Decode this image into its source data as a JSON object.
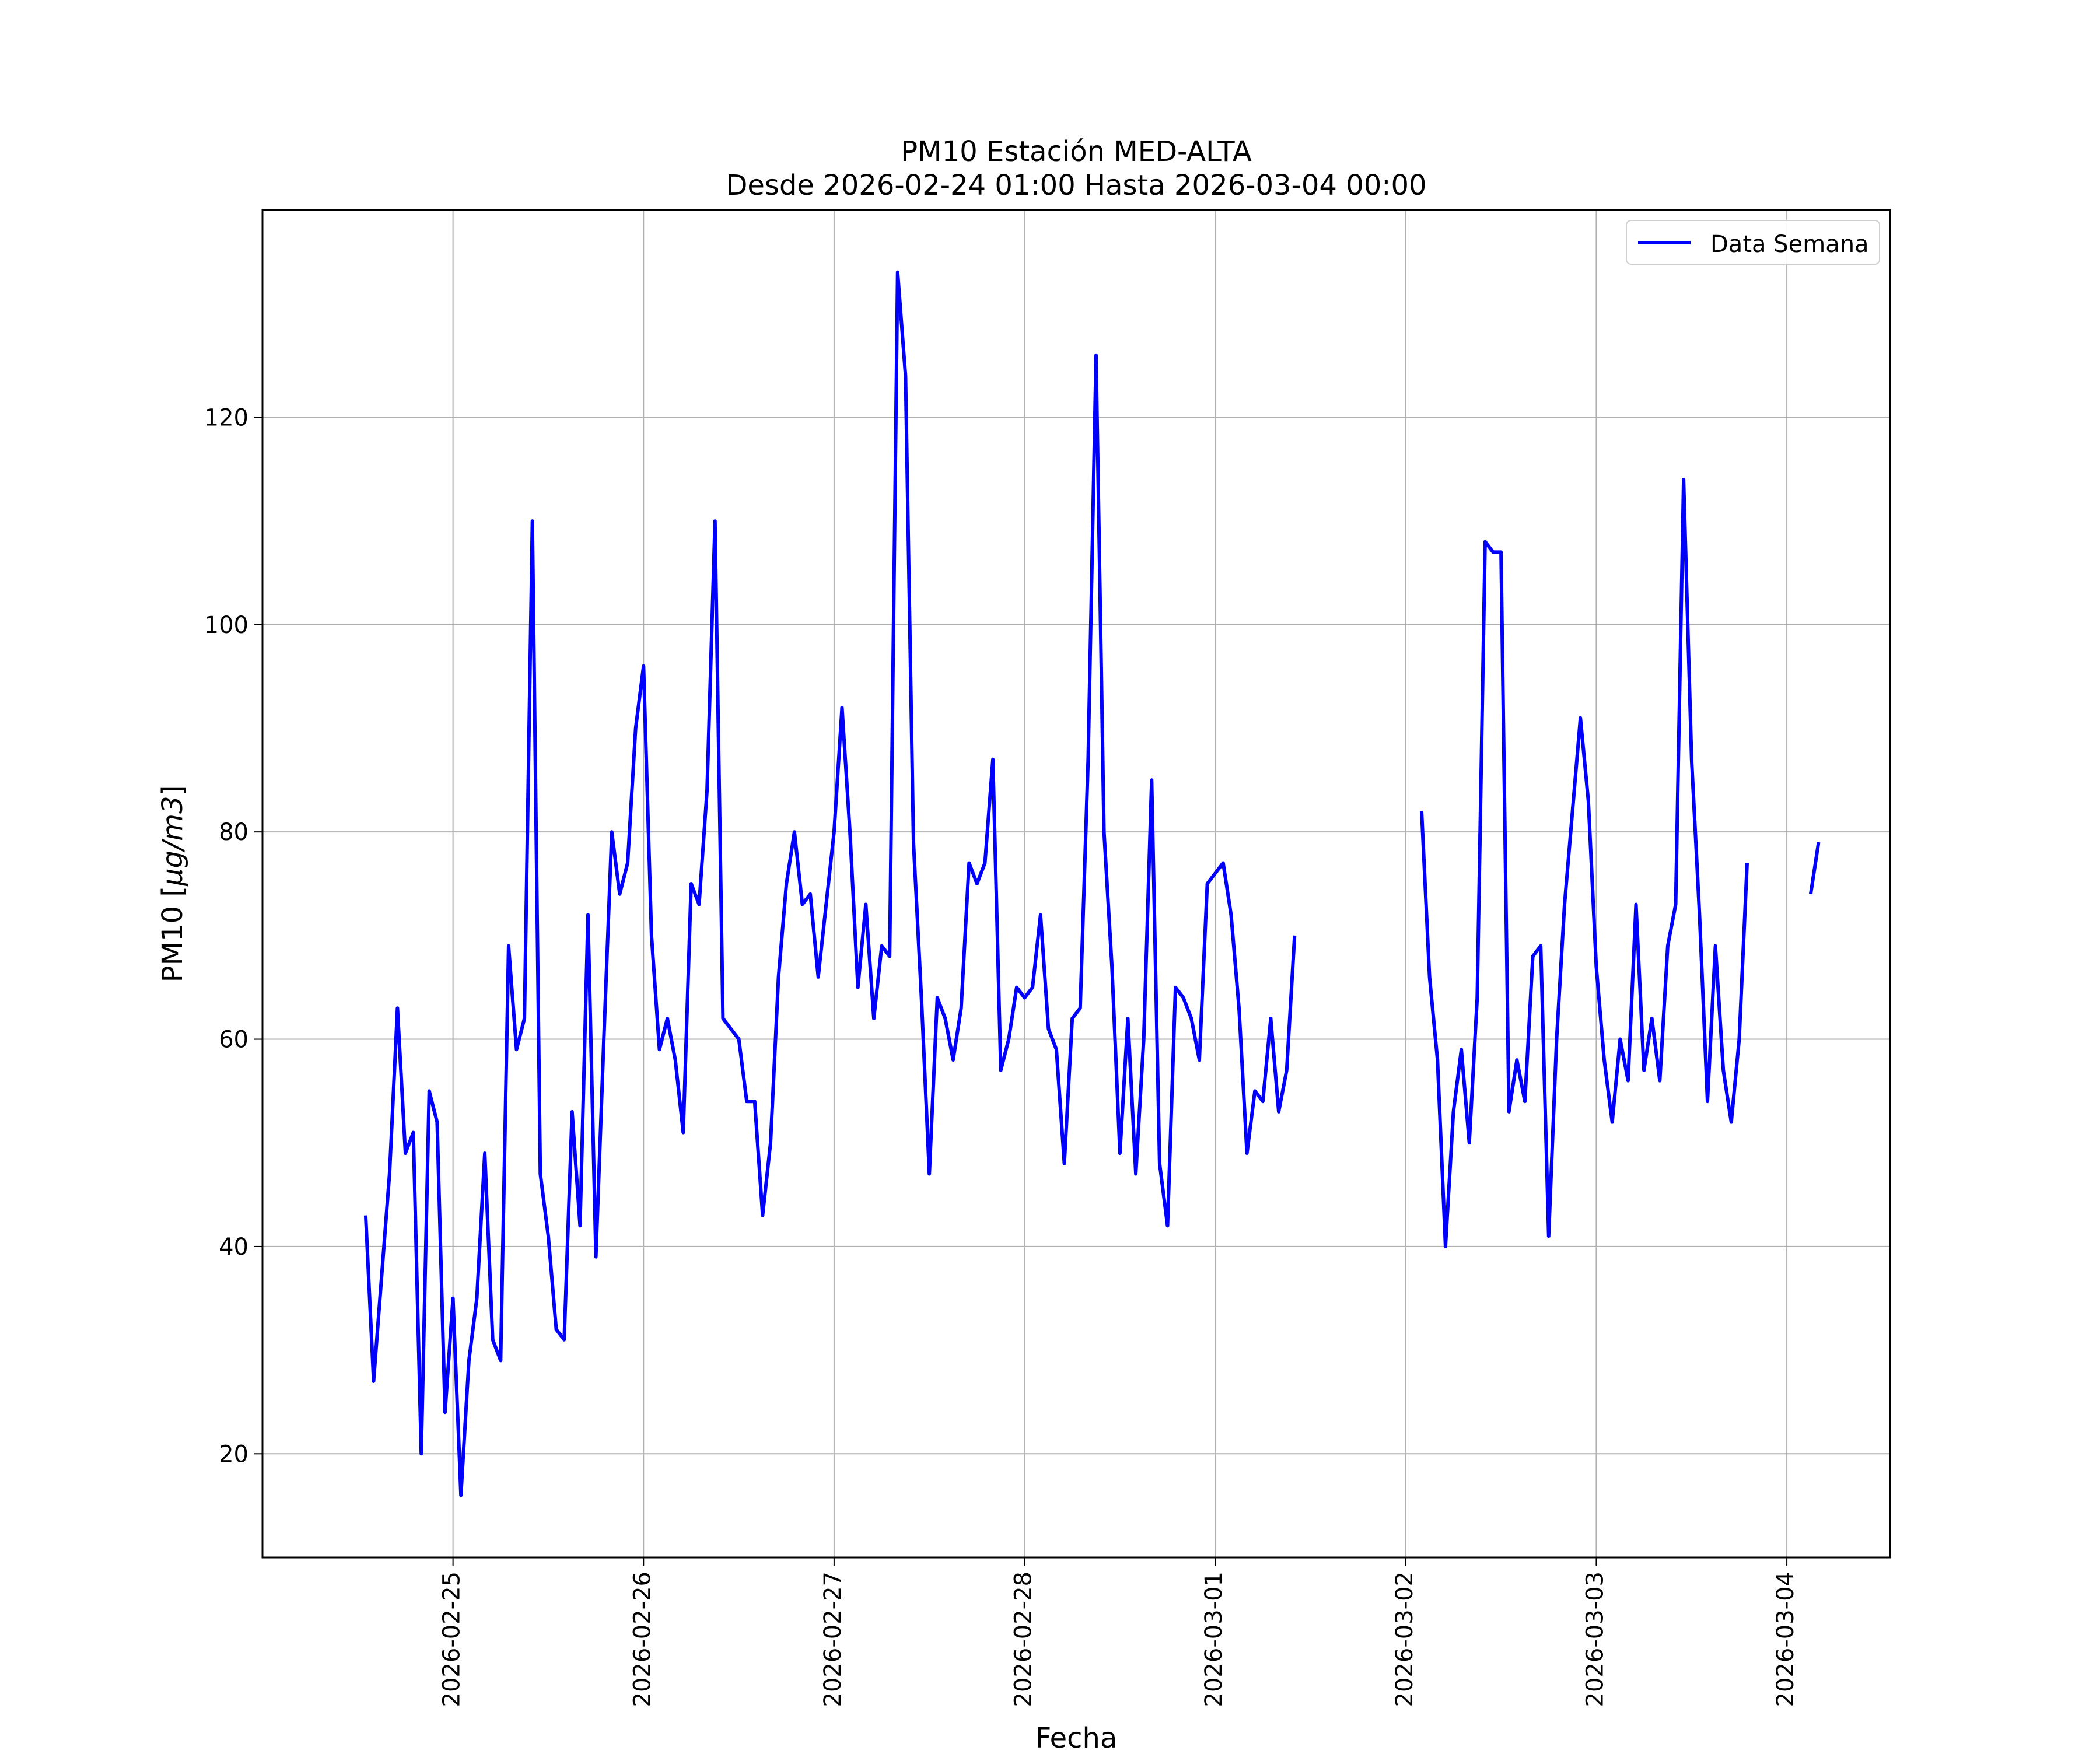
{
  "chart_data": {
    "type": "line",
    "title": "PM10 Estación MED-ALTA",
    "subtitle": "Desde 2026-02-24 01:00 Hasta 2026-03-04 00:00",
    "xlabel": "Fecha",
    "ylabel_text": "PM10 [",
    "ylabel_math": "μg/m3",
    "ylabel_close": "]",
    "x_start": "2026-02-24 01:00",
    "x_step_hours": 1,
    "xlim": [
      "2026-02-24 00:00",
      "2026-03-04 13:00"
    ],
    "ylim": [
      10,
      140
    ],
    "yticks": [
      20,
      40,
      60,
      80,
      100,
      120
    ],
    "xticks": [
      "2026-02-25",
      "2026-02-26",
      "2026-02-27",
      "2026-02-28",
      "2026-03-01",
      "2026-03-02",
      "2026-03-03",
      "2026-03-04"
    ],
    "grid": true,
    "legend_position": "top-right",
    "series": [
      {
        "name": "Data Semana",
        "color": "#0000ff",
        "values": [
          null,
          null,
          null,
          null,
          null,
          null,
          null,
          null,
          null,
          null,
          null,
          null,
          43,
          27,
          37,
          47,
          63,
          49,
          51,
          20,
          55,
          52,
          24,
          35,
          16,
          29,
          35,
          49,
          31,
          29,
          69,
          59,
          62,
          110,
          47,
          41,
          32,
          31,
          53,
          42,
          72,
          39,
          60,
          80,
          74,
          77,
          90,
          96,
          70,
          59,
          62,
          58,
          51,
          75,
          73,
          84,
          110,
          62,
          61,
          60,
          54,
          54,
          43,
          50,
          66,
          75,
          80,
          73,
          74,
          66,
          73,
          80,
          92,
          80,
          65,
          73,
          62,
          69,
          68,
          134,
          124,
          79,
          64,
          47,
          64,
          62,
          58,
          63,
          77,
          75,
          77,
          87,
          57,
          60,
          65,
          64,
          65,
          72,
          61,
          59,
          48,
          62,
          63,
          87,
          126,
          80,
          67,
          49,
          62,
          47,
          60,
          85,
          48,
          42,
          65,
          64,
          62,
          58,
          75,
          76,
          77,
          72,
          63,
          49,
          55,
          54,
          62,
          53,
          57,
          70,
          null,
          null,
          null,
          null,
          null,
          null,
          null,
          null,
          null,
          null,
          null,
          null,
          null,
          null,
          null,
          82,
          66,
          58,
          40,
          53,
          59,
          50,
          64,
          108,
          107,
          107,
          53,
          58,
          54,
          68,
          69,
          41,
          60,
          73,
          82,
          91,
          83,
          67,
          58,
          52,
          60,
          56,
          73,
          57,
          62,
          56,
          69,
          73,
          114,
          87,
          72,
          54,
          69,
          57,
          52,
          60,
          77,
          null,
          null,
          null,
          null,
          null,
          null,
          null,
          74,
          79
        ]
      }
    ]
  }
}
